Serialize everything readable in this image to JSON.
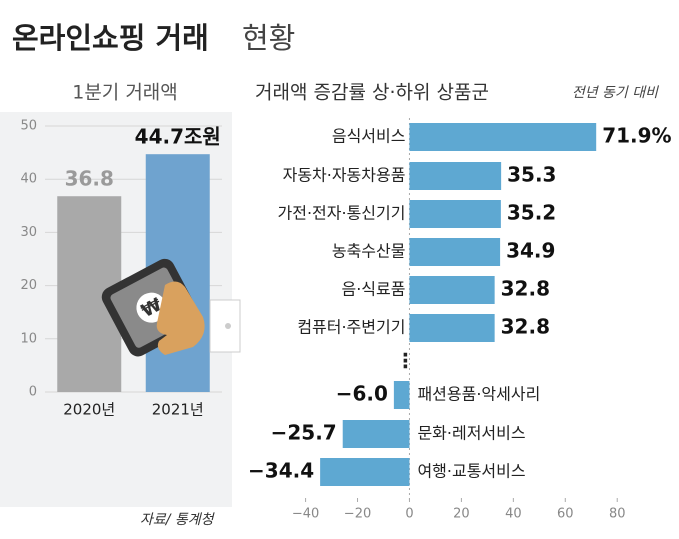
{
  "title_main": "온라인쇼핑 거래",
  "title_sub": "현황",
  "source": "자료/ 통계청",
  "chart_data": [
    {
      "type": "bar",
      "title": "1분기 거래액",
      "categories": [
        "2020년",
        "2021년"
      ],
      "values": [
        36.8,
        44.7
      ],
      "value_labels": [
        "36.8",
        "44.7조원"
      ],
      "colors": [
        "#a9a9a9",
        "#6fa3cf"
      ],
      "ylim": [
        0,
        50
      ],
      "yticks": [
        0,
        10,
        20,
        30,
        40,
        50
      ],
      "grid": true
    },
    {
      "type": "barh",
      "title": "거래액 증감률 상·하위 상품군",
      "note": "전년 동기 대비",
      "categories": [
        "음식서비스",
        "자동차·자동차용품",
        "가전·전자·통신기기",
        "농축수산물",
        "음·식료품",
        "컴퓨터·주변기기",
        "⋮",
        "패션용품·악세사리",
        "문화·레저서비스",
        "여행·교통서비스"
      ],
      "values": [
        71.9,
        35.3,
        35.2,
        34.9,
        32.8,
        32.8,
        null,
        -6.0,
        -25.7,
        -34.4
      ],
      "value_labels": [
        "71.9%",
        "35.3",
        "35.2",
        "34.9",
        "32.8",
        "32.8",
        null,
        "−6.0",
        "−25.7",
        "−34.4"
      ],
      "color": "#5ea8d2",
      "xlim": [
        -46,
        88
      ],
      "xticks": [
        {
          "value": -40,
          "label": "−40"
        },
        {
          "value": -20,
          "label": "−20"
        },
        0,
        20,
        40,
        60,
        80
      ]
    }
  ]
}
